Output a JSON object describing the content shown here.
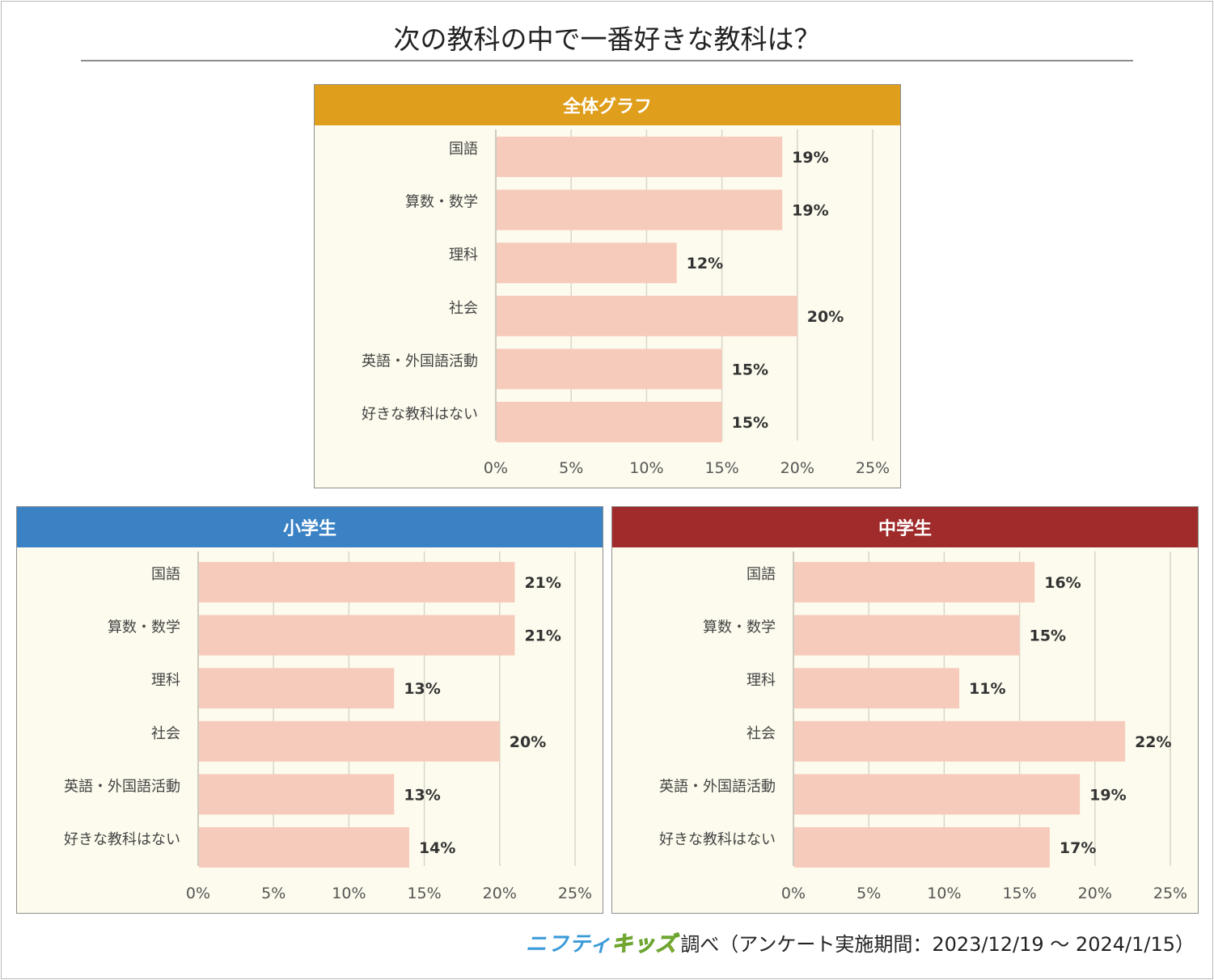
{
  "title": "次の教科の中で一番好きな教科は？",
  "footer": {
    "logo_part1": "ニフティ",
    "logo_part2": "キッズ",
    "text": "調べ（アンケート実施期間：2023/12/19 〜 2024/1/15）"
  },
  "colors": {
    "bar": "#f7cbbb",
    "grid": "#d9d6c9",
    "panel_bg": "#fdfbed",
    "header_overall": "#df9e1c",
    "header_elementary": "#3b82c4",
    "header_junior": "#a02b2b"
  },
  "chart_data": [
    {
      "type": "bar",
      "orientation": "horizontal",
      "title": "全体グラフ",
      "categories": [
        "国語",
        "算数・数学",
        "理科",
        "社会",
        "英語・外国語活動",
        "好きな教科はない"
      ],
      "values": [
        19,
        19,
        12,
        20,
        15,
        15
      ],
      "value_labels": [
        "19%",
        "19%",
        "12%",
        "20%",
        "15%",
        "15%"
      ],
      "xlim": [
        0,
        25
      ],
      "xticks": [
        "0%",
        "5%",
        "10%",
        "15%",
        "20%",
        "25%"
      ],
      "grid": true
    },
    {
      "type": "bar",
      "orientation": "horizontal",
      "title": "小学生",
      "categories": [
        "国語",
        "算数・数学",
        "理科",
        "社会",
        "英語・外国語活動",
        "好きな教科はない"
      ],
      "values": [
        21,
        21,
        13,
        20,
        13,
        14
      ],
      "value_labels": [
        "21%",
        "21%",
        "13%",
        "20%",
        "13%",
        "14%"
      ],
      "xlim": [
        0,
        25
      ],
      "xticks": [
        "0%",
        "5%",
        "10%",
        "15%",
        "20%",
        "25%"
      ],
      "grid": true
    },
    {
      "type": "bar",
      "orientation": "horizontal",
      "title": "中学生",
      "categories": [
        "国語",
        "算数・数学",
        "理科",
        "社会",
        "英語・外国語活動",
        "好きな教科はない"
      ],
      "values": [
        16,
        15,
        11,
        22,
        19,
        17
      ],
      "value_labels": [
        "16%",
        "15%",
        "11%",
        "22%",
        "19%",
        "17%"
      ],
      "xlim": [
        0,
        25
      ],
      "xticks": [
        "0%",
        "5%",
        "10%",
        "15%",
        "20%",
        "25%"
      ],
      "grid": true
    }
  ]
}
